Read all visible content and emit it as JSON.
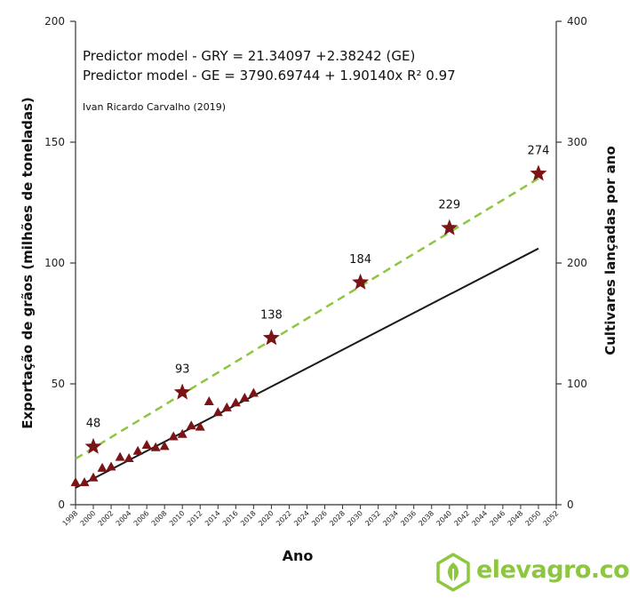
{
  "chart_data": {
    "type": "scatter",
    "annotation_lines": [
      "Predictor model - GRY = 21.34097 +2.38242 (GE)",
      "Predictor model - GE = 3790.69744 + 1.90140x R² 0.97"
    ],
    "author_note": "Ivan Ricardo Carvalho (2019)",
    "xlabel": "Ano",
    "ylabel_left": "Exportação de grãos (milhões de toneladas)",
    "ylabel_right": "Cultivares lançadas por ano",
    "xlim": [
      1998,
      2052
    ],
    "ylim_left": [
      0,
      200
    ],
    "ylim_right": [
      0,
      400
    ],
    "x_ticks": [
      1998,
      2000,
      2002,
      2004,
      2006,
      2008,
      2010,
      2012,
      2014,
      2016,
      2018,
      2020,
      2022,
      2024,
      2026,
      2028,
      2030,
      2032,
      2034,
      2036,
      2038,
      2040,
      2042,
      2044,
      2046,
      2048,
      2050,
      2052
    ],
    "y_ticks_left": [
      0,
      50,
      100,
      150,
      200
    ],
    "y_ticks_right": [
      0,
      100,
      200,
      300,
      400
    ],
    "grid": false,
    "series": [
      {
        "marker": "triangle",
        "color": "#7b1416",
        "axis": "left",
        "points": [
          [
            1998,
            9.5
          ],
          [
            1999,
            9.5
          ],
          [
            2000,
            11.5
          ],
          [
            2001,
            15.5
          ],
          [
            2002,
            16
          ],
          [
            2003,
            20
          ],
          [
            2004,
            19.5
          ],
          [
            2005,
            22.5
          ],
          [
            2006,
            25
          ],
          [
            2007,
            24
          ],
          [
            2008,
            24.5
          ],
          [
            2009,
            28.5
          ],
          [
            2010,
            29.5
          ],
          [
            2011,
            33
          ],
          [
            2012,
            32.5
          ],
          [
            2013,
            43
          ],
          [
            2014,
            38.5
          ],
          [
            2015,
            40.5
          ],
          [
            2016,
            42.5
          ],
          [
            2017,
            44.5
          ],
          [
            2018,
            46.5
          ]
        ]
      },
      {
        "marker": "line",
        "style": "solid",
        "color": "#1a1a1a",
        "axis": "left",
        "points": [
          [
            1998,
            7
          ],
          [
            2050,
            106
          ]
        ]
      },
      {
        "marker": "star",
        "color": "#7b1416",
        "axis": "right",
        "points": [
          [
            2000,
            48
          ],
          [
            2010,
            93
          ],
          [
            2020,
            138
          ],
          [
            2030,
            184
          ],
          [
            2040,
            229
          ],
          [
            2050,
            274
          ]
        ],
        "data_labels": [
          "48",
          "93",
          "138",
          "184",
          "229",
          "274"
        ]
      },
      {
        "marker": "line",
        "style": "dashed",
        "color": "#8dc63f",
        "axis": "right",
        "points": [
          [
            1998,
            38
          ],
          [
            2050,
            270
          ]
        ]
      }
    ]
  },
  "branding": {
    "logo_text_main": "elevagro",
    "logo_text_domain": ".com",
    "logo_color": "#8dc63f"
  }
}
